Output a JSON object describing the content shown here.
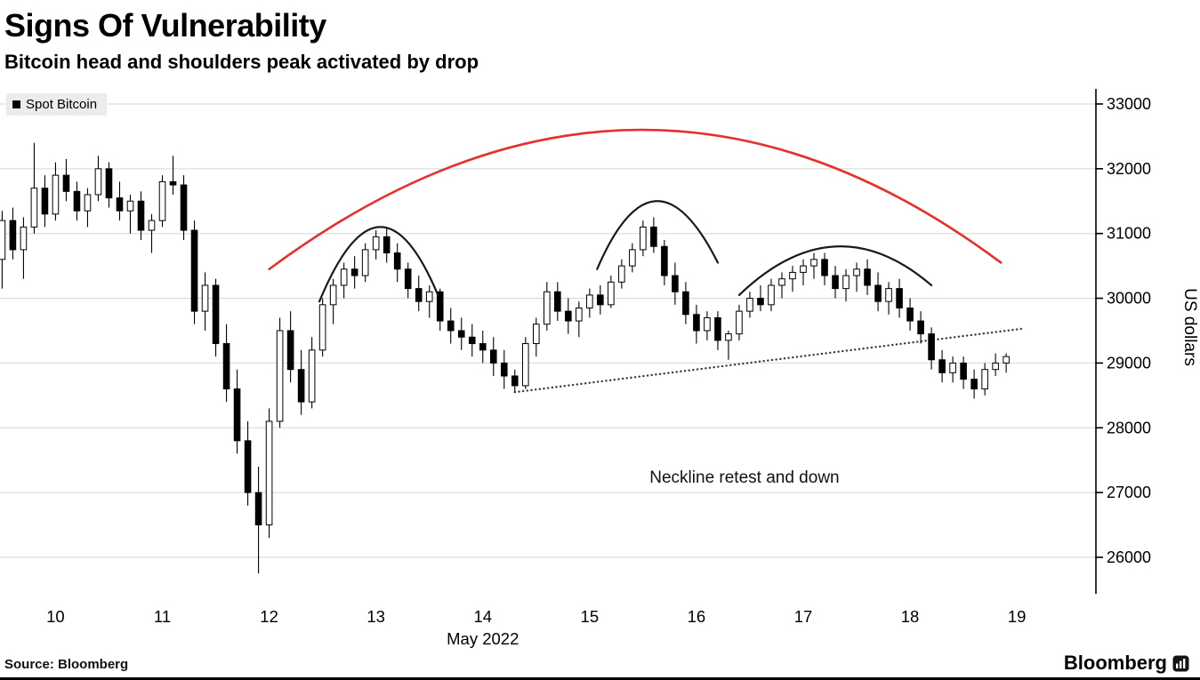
{
  "header": {
    "title": "Signs Of Vulnerability",
    "subtitle": "Bitcoin head and shoulders peak activated by drop"
  },
  "legend": {
    "label": "Spot Bitcoin",
    "swatch_color": "#000000"
  },
  "footer": {
    "source": "Source: Bloomberg",
    "brand": "Bloomberg"
  },
  "icons": {
    "legend_swatch": "black-square",
    "brand_mark": "bloomberg-terminal-icon"
  },
  "chart_data": {
    "type": "candlestick",
    "title": "Signs Of Vulnerability",
    "subtitle": "Bitcoin head and shoulders peak activated by drop",
    "series_name": "Spot Bitcoin",
    "xlabel": "May 2022",
    "ylabel": "US dollars",
    "x_ticks": [
      10,
      11,
      12,
      13,
      14,
      15,
      16,
      17,
      18,
      19
    ],
    "y_ticks": [
      26000,
      27000,
      28000,
      29000,
      30000,
      31000,
      32000,
      33000
    ],
    "xlim": [
      9.48,
      19.74
    ],
    "ylim": [
      25437,
      33233
    ],
    "grid": true,
    "legend_position": "top-left",
    "colors": {
      "up_fill": "#ffffff",
      "down_fill": "#000000",
      "outline": "#000000",
      "grid": "#d6d6d6",
      "pattern_arc": "#e8302a",
      "shoulder_arc": "#1a1a1a",
      "neckline": "#3a3a3a"
    },
    "candles": {
      "columns": [
        "day_of_may_2022",
        "open",
        "high",
        "low",
        "close"
      ],
      "rows": [
        [
          9.5,
          30600,
          31350,
          30150,
          31200
        ],
        [
          9.6,
          31200,
          31400,
          30600,
          30750
        ],
        [
          9.7,
          30750,
          31250,
          30300,
          31100
        ],
        [
          9.8,
          31100,
          32400,
          31000,
          31700
        ],
        [
          9.9,
          31700,
          31900,
          31100,
          31300
        ],
        [
          10.0,
          31300,
          32100,
          31200,
          31900
        ],
        [
          10.1,
          31900,
          32150,
          31500,
          31650
        ],
        [
          10.2,
          31650,
          31800,
          31200,
          31350
        ],
        [
          10.3,
          31350,
          31700,
          31100,
          31600
        ],
        [
          10.4,
          31600,
          32200,
          31500,
          32000
        ],
        [
          10.5,
          32000,
          32100,
          31400,
          31550
        ],
        [
          10.6,
          31550,
          31800,
          31200,
          31350
        ],
        [
          10.7,
          31350,
          31600,
          31000,
          31500
        ],
        [
          10.8,
          31500,
          31650,
          30900,
          31050
        ],
        [
          10.9,
          31050,
          31300,
          30700,
          31200
        ],
        [
          11.0,
          31200,
          31900,
          31100,
          31800
        ],
        [
          11.1,
          31800,
          32200,
          31600,
          31750
        ],
        [
          11.2,
          31750,
          31900,
          30900,
          31050
        ],
        [
          11.3,
          31050,
          31200,
          29600,
          29800
        ],
        [
          11.4,
          29800,
          30400,
          29500,
          30200
        ],
        [
          11.5,
          30200,
          30300,
          29100,
          29300
        ],
        [
          11.6,
          29300,
          29600,
          28400,
          28600
        ],
        [
          11.7,
          28600,
          28900,
          27600,
          27800
        ],
        [
          11.8,
          27800,
          28100,
          26800,
          27000
        ],
        [
          11.9,
          27000,
          27400,
          25750,
          26500
        ],
        [
          12.0,
          26500,
          28300,
          26300,
          28100
        ],
        [
          12.1,
          28100,
          29700,
          28000,
          29500
        ],
        [
          12.2,
          29500,
          29800,
          28700,
          28900
        ],
        [
          12.3,
          28900,
          29200,
          28200,
          28400
        ],
        [
          12.4,
          28400,
          29400,
          28300,
          29200
        ],
        [
          12.5,
          29200,
          30000,
          29100,
          29900
        ],
        [
          12.6,
          29900,
          30300,
          29600,
          30200
        ],
        [
          12.7,
          30200,
          30550,
          30000,
          30450
        ],
        [
          12.8,
          30450,
          30650,
          30150,
          30350
        ],
        [
          12.9,
          30350,
          30850,
          30250,
          30750
        ],
        [
          13.0,
          30750,
          31050,
          30600,
          30950
        ],
        [
          13.1,
          30950,
          31100,
          30550,
          30700
        ],
        [
          13.2,
          30700,
          30850,
          30250,
          30450
        ],
        [
          13.3,
          30450,
          30550,
          30000,
          30150
        ],
        [
          13.4,
          30150,
          30350,
          29800,
          29950
        ],
        [
          13.5,
          29950,
          30200,
          29700,
          30100
        ],
        [
          13.6,
          30100,
          30150,
          29500,
          29650
        ],
        [
          13.7,
          29650,
          29850,
          29300,
          29500
        ],
        [
          13.8,
          29500,
          29700,
          29200,
          29400
        ],
        [
          13.9,
          29400,
          29600,
          29100,
          29300
        ],
        [
          14.0,
          29300,
          29500,
          29000,
          29200
        ],
        [
          14.1,
          29200,
          29400,
          28800,
          29000
        ],
        [
          14.2,
          29000,
          29200,
          28600,
          28800
        ],
        [
          14.3,
          28800,
          28900,
          28550,
          28650
        ],
        [
          14.4,
          28650,
          29400,
          28600,
          29300
        ],
        [
          14.5,
          29300,
          29700,
          29100,
          29600
        ],
        [
          14.6,
          29600,
          30250,
          29500,
          30100
        ],
        [
          14.7,
          30100,
          30250,
          29650,
          29800
        ],
        [
          14.8,
          29800,
          30000,
          29450,
          29650
        ],
        [
          14.9,
          29650,
          29950,
          29400,
          29850
        ],
        [
          15.0,
          29850,
          30150,
          29700,
          30050
        ],
        [
          15.1,
          30050,
          30200,
          29750,
          29900
        ],
        [
          15.2,
          29900,
          30350,
          29850,
          30250
        ],
        [
          15.3,
          30250,
          30600,
          30150,
          30500
        ],
        [
          15.4,
          30500,
          30850,
          30400,
          30750
        ],
        [
          15.5,
          30750,
          31200,
          30650,
          31100
        ],
        [
          15.6,
          31100,
          31250,
          30700,
          30800
        ],
        [
          15.7,
          30800,
          30900,
          30200,
          30350
        ],
        [
          15.8,
          30350,
          30550,
          29900,
          30100
        ],
        [
          15.9,
          30100,
          30250,
          29600,
          29750
        ],
        [
          16.0,
          29750,
          29900,
          29300,
          29500
        ],
        [
          16.1,
          29500,
          29800,
          29350,
          29700
        ],
        [
          16.2,
          29700,
          29800,
          29200,
          29350
        ],
        [
          16.3,
          29350,
          29500,
          29050,
          29450
        ],
        [
          16.4,
          29450,
          29900,
          29350,
          29800
        ],
        [
          16.5,
          29800,
          30100,
          29700,
          30000
        ],
        [
          16.6,
          30000,
          30200,
          29800,
          29900
        ],
        [
          16.7,
          29900,
          30300,
          29800,
          30200
        ],
        [
          16.8,
          30200,
          30400,
          30000,
          30300
        ],
        [
          16.9,
          30300,
          30500,
          30100,
          30400
        ],
        [
          17.0,
          30400,
          30600,
          30200,
          30500
        ],
        [
          17.1,
          30500,
          30700,
          30300,
          30600
        ],
        [
          17.2,
          30600,
          30700,
          30200,
          30350
        ],
        [
          17.3,
          30350,
          30500,
          30000,
          30150
        ],
        [
          17.4,
          30150,
          30450,
          29950,
          30350
        ],
        [
          17.5,
          30350,
          30550,
          30100,
          30450
        ],
        [
          17.6,
          30450,
          30600,
          30050,
          30200
        ],
        [
          17.7,
          30200,
          30400,
          29800,
          29950
        ],
        [
          17.8,
          29950,
          30250,
          29750,
          30150
        ],
        [
          17.9,
          30150,
          30300,
          29700,
          29850
        ],
        [
          18.0,
          29850,
          30000,
          29500,
          29650
        ],
        [
          18.1,
          29650,
          29800,
          29300,
          29450
        ],
        [
          18.2,
          29450,
          29550,
          28900,
          29050
        ],
        [
          18.3,
          29050,
          29200,
          28700,
          28850
        ],
        [
          18.4,
          28850,
          29100,
          28700,
          29000
        ],
        [
          18.5,
          29000,
          29100,
          28600,
          28750
        ],
        [
          18.6,
          28750,
          28900,
          28450,
          28600
        ],
        [
          18.7,
          28600,
          29000,
          28500,
          28900
        ],
        [
          18.8,
          28900,
          29150,
          28800,
          29000
        ],
        [
          18.9,
          29000,
          29150,
          28850,
          29100
        ]
      ]
    },
    "arcs": [
      {
        "name": "pattern-arc",
        "color": "#e8302a",
        "width": 2.6,
        "x1": 12.0,
        "y1": 30450,
        "xp": 15.45,
        "yp": 32600,
        "x2": 18.85,
        "y2": 30550
      },
      {
        "name": "left-shoulder-arc",
        "color": "#1a1a1a",
        "width": 2.2,
        "x1": 12.47,
        "y1": 29950,
        "xp": 13.03,
        "yp": 31100,
        "x2": 13.58,
        "y2": 30050
      },
      {
        "name": "head-arc",
        "color": "#1a1a1a",
        "width": 2.2,
        "x1": 15.07,
        "y1": 30450,
        "xp": 15.62,
        "yp": 31500,
        "x2": 16.2,
        "y2": 30550
      },
      {
        "name": "right-shoulder-arc",
        "color": "#1a1a1a",
        "width": 2.2,
        "x1": 16.4,
        "y1": 30050,
        "xp": 17.3,
        "yp": 30800,
        "x2": 18.2,
        "y2": 30200
      }
    ],
    "neckline": {
      "x1": 14.3,
      "y1": 28550,
      "x2": 19.05,
      "y2": 29530,
      "style": "dotted"
    },
    "annotations": [
      {
        "text": "Neckline retest and down",
        "x": 16.45,
        "y": 27150
      }
    ]
  }
}
